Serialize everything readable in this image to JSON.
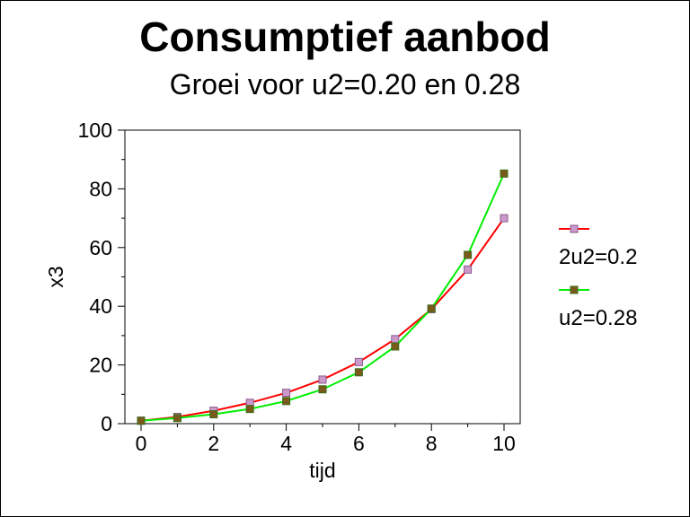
{
  "chart_data": {
    "type": "line",
    "title": "Consumptief aanbod",
    "subtitle": "Groei voor u2=0.20 en 0.28",
    "xlabel": "tijd",
    "ylabel": "x3",
    "xlim": [
      0,
      10
    ],
    "ylim": [
      0,
      100
    ],
    "xticks": [
      "0",
      "2",
      "4",
      "6",
      "8",
      "10"
    ],
    "yticks": [
      "0",
      "20",
      "40",
      "60",
      "80",
      "100"
    ],
    "grid": false,
    "legend_position": "right",
    "x": [
      0,
      1,
      2,
      3,
      4,
      5,
      6,
      7,
      8,
      9,
      10
    ],
    "series": [
      {
        "name": "2u2=0.2",
        "line_color": "#ff0000",
        "marker_color": "#cc99cc",
        "marker_border": "#8a5a8a",
        "values": [
          1.0,
          2.3,
          4.4,
          7.1,
          10.5,
          15.0,
          21.0,
          28.8,
          39.0,
          52.5,
          70.0
        ]
      },
      {
        "name": "u2=0.28",
        "line_color": "#00ee00",
        "marker_color": "#7a5a1a",
        "marker_border": "#3c6e1c",
        "values": [
          1.0,
          1.9,
          3.2,
          5.0,
          7.7,
          11.7,
          17.5,
          26.3,
          39.2,
          57.5,
          85.2
        ]
      }
    ]
  }
}
